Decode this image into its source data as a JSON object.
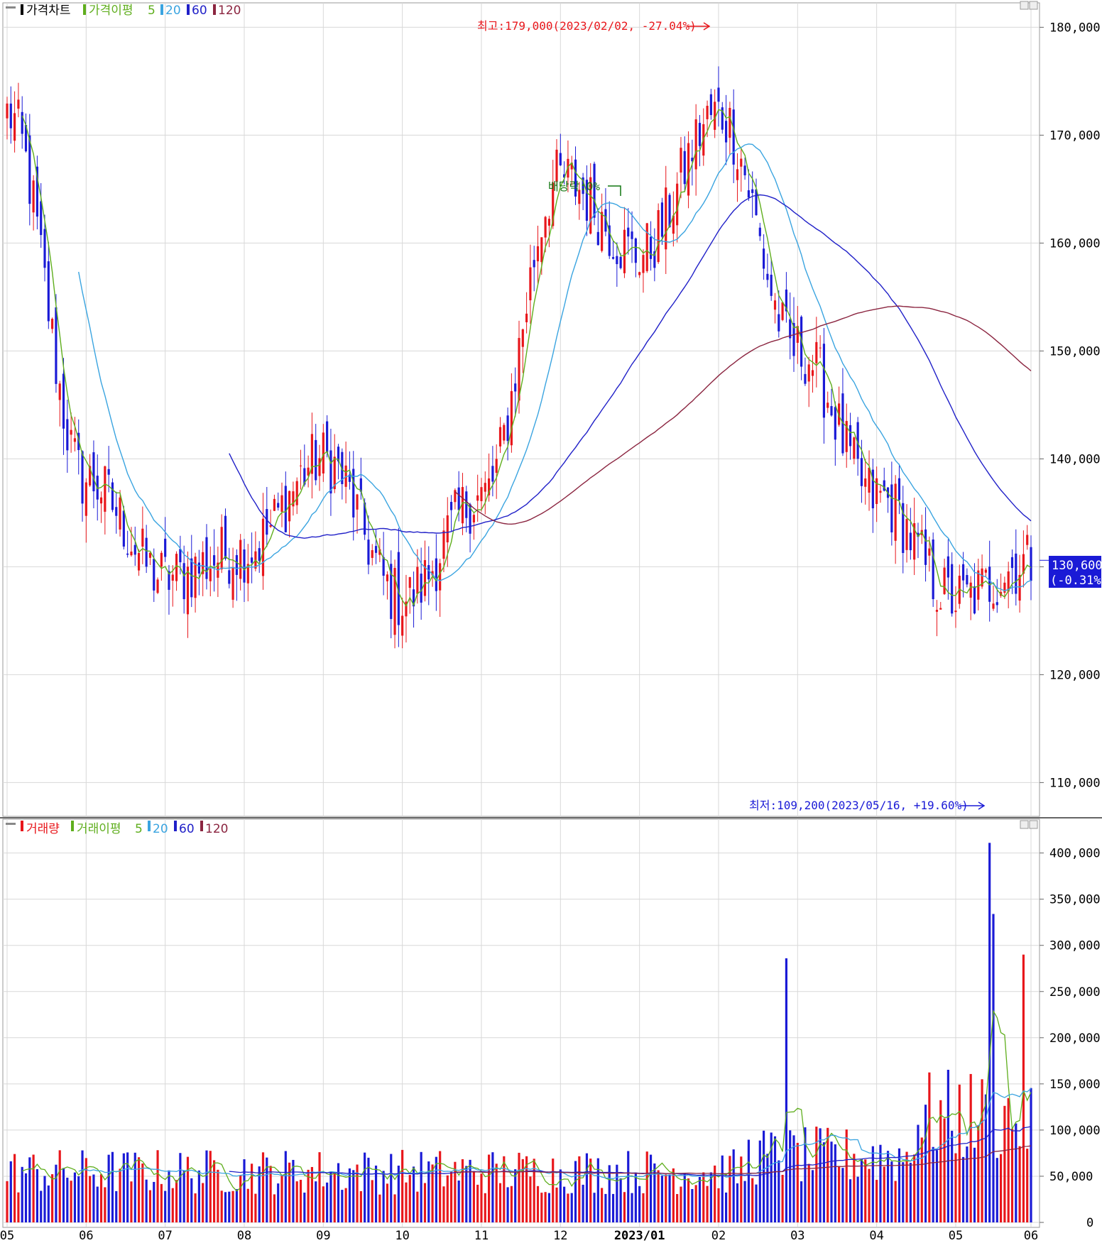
{
  "chart_data": [
    {
      "type": "candlestick",
      "panel": "price",
      "legend": {
        "title": "가격차트",
        "ma_label": "가격이평",
        "ma_periods": [
          "5",
          "20",
          "60",
          "120"
        ]
      },
      "colors": {
        "up": "#e8161b",
        "down": "#1a1ad6",
        "ma5": "#5fae1d",
        "ma20": "#3aa4e0",
        "ma60": "#2020c8",
        "ma120": "#8b2540",
        "grid": "#d8d8d8"
      },
      "y_ticks": [
        "180,000",
        "170,000",
        "160,000",
        "150,000",
        "140,000",
        "130,000",
        "120,000",
        "110,000"
      ],
      "y_tick_values": [
        180000,
        170000,
        160000,
        150000,
        140000,
        130000,
        120000,
        110000
      ],
      "ylim": [
        107000,
        182000
      ],
      "current": {
        "price": "130,600",
        "change": "(-0.31%)",
        "value": 130600
      },
      "annotations": {
        "high": "최고:179,000(2023/02/02, -27.04%)",
        "low": "최저:109,200(2023/05/16, +19.60%)",
        "dividend": "배당락:0%"
      },
      "month_anchors": [
        {
          "label": "05",
          "value": 172000
        },
        {
          "label": "06",
          "value": 138000
        },
        {
          "label": "07",
          "value": 129000
        },
        {
          "label": "08",
          "value": 131500
        },
        {
          "label": "09",
          "value": 140000
        },
        {
          "label": "10",
          "value": 127000
        },
        {
          "label": "11",
          "value": 136500
        },
        {
          "label": "12",
          "value": 166000
        },
        {
          "label": "2023/01",
          "value": 159000
        },
        {
          "label": "02",
          "value": 172000
        },
        {
          "label": "03",
          "value": 150000
        },
        {
          "label": "04",
          "value": 136500
        },
        {
          "label": "05",
          "value": 127000
        },
        {
          "label": "06",
          "value": 130600
        }
      ]
    },
    {
      "type": "bar",
      "panel": "volume",
      "legend": {
        "title": "거래량",
        "ma_label": "거래이평",
        "ma_periods": [
          "5",
          "20",
          "60",
          "120"
        ]
      },
      "y_ticks": [
        "400,000",
        "350,000",
        "300,000",
        "250,000",
        "200,000",
        "150,000",
        "100,000",
        "50,000",
        "0"
      ],
      "y_tick_values": [
        400000,
        350000,
        300000,
        250000,
        200000,
        150000,
        100000,
        50000,
        0
      ],
      "ylim": [
        0,
        412000
      ],
      "x_ticks": [
        "05",
        "06",
        "07",
        "08",
        "09",
        "10",
        "11",
        "12",
        "2023/01",
        "02",
        "03",
        "04",
        "05",
        "06"
      ],
      "peak_volumes": [
        {
          "date": "2023/05/16",
          "value": 411000
        },
        {
          "date": "2023/05/17",
          "value": 334000
        },
        {
          "date": "2023/05/31",
          "value": 290000
        },
        {
          "date": "2023/03/06",
          "value": 286000
        }
      ]
    }
  ]
}
